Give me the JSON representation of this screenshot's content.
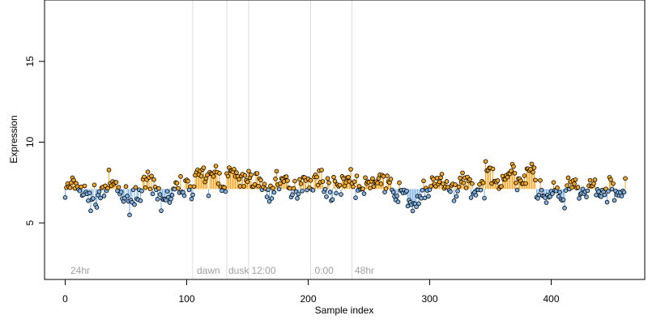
{
  "chart_data": {
    "type": "scatter",
    "title": "",
    "xlabel": "Sample index",
    "ylabel": "Expression",
    "xlim": [
      -17,
      477
    ],
    "ylim": [
      1.5,
      18.8
    ],
    "x_ticks": [
      0,
      100,
      200,
      300,
      400
    ],
    "y_ticks": [
      5,
      10,
      15
    ],
    "baseline": 7.1,
    "grid": false,
    "legend": "none",
    "colors": {
      "above": "#f5a623",
      "below": "#7fb2e5",
      "point_outline": "#000000",
      "annotation": "#a0a0a0",
      "separator": "#dddddd"
    },
    "separators": [
      105,
      133,
      151,
      202,
      236
    ],
    "annotations": [
      {
        "text": "24hr",
        "x": 3
      },
      {
        "text": "dawn",
        "x": 107
      },
      {
        "text": "dusk",
        "x": 133
      },
      {
        "text": "12:00",
        "x": 152
      },
      {
        "text": "0:00",
        "x": 204
      },
      {
        "text": "48hr",
        "x": 237
      }
    ],
    "segments": [
      {
        "x_from": 0,
        "x_to": 100,
        "mean": 6.9,
        "amp": 0.45,
        "period": 30
      },
      {
        "x_from": 101,
        "x_to": 105,
        "mean": 7.0,
        "amp": 0.25,
        "period": 8
      },
      {
        "x_from": 106,
        "x_to": 151,
        "mean": 7.8,
        "amp": 0.35,
        "period": 14
      },
      {
        "x_from": 152,
        "x_to": 200,
        "mean": 7.3,
        "amp": 0.5,
        "period": 20
      },
      {
        "x_from": 201,
        "x_to": 272,
        "mean": 7.4,
        "amp": 0.35,
        "period": 25
      },
      {
        "x_from": 273,
        "x_to": 300,
        "mean": 6.5,
        "amp": 0.4,
        "period": 18
      },
      {
        "x_from": 301,
        "x_to": 345,
        "mean": 7.3,
        "amp": 0.4,
        "period": 22
      },
      {
        "x_from": 346,
        "x_to": 387,
        "mean": 7.9,
        "amp": 0.3,
        "period": 16
      },
      {
        "x_from": 388,
        "x_to": 415,
        "mean": 6.7,
        "amp": 0.45,
        "period": 12
      },
      {
        "x_from": 416,
        "x_to": 461,
        "mean": 7.0,
        "amp": 0.35,
        "period": 15
      }
    ],
    "n_points": 462,
    "noise": 0.33,
    "seed": 7
  }
}
